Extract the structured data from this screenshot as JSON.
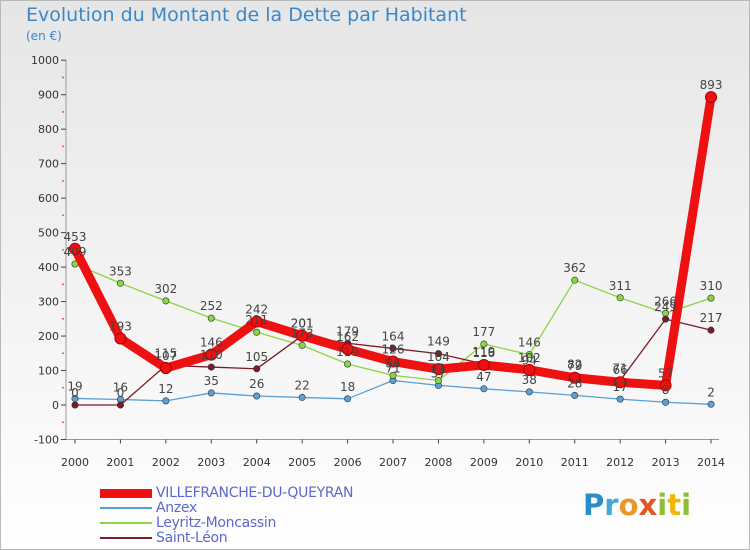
{
  "title": "Evolution du Montant de la Dette par Habitant",
  "unit_label": "(en €)",
  "logo_text": "Proxiti",
  "chart_data": {
    "type": "line",
    "title": "Evolution du Montant de la Dette par Habitant",
    "ylabel": "(en €)",
    "xlabel": "",
    "categories": [
      "2000",
      "2001",
      "2002",
      "2003",
      "2004",
      "2005",
      "2006",
      "2007",
      "2008",
      "2009",
      "2010",
      "2011",
      "2012",
      "2013",
      "2014"
    ],
    "ylim": [
      -100,
      1000
    ],
    "yticks": [
      -100,
      0,
      100,
      200,
      300,
      400,
      500,
      600,
      700,
      800,
      900,
      1000
    ],
    "grid": false,
    "legend_position": "bottom-left",
    "series": [
      {
        "name": "VILLEFRANCHE-DU-QUEYRAN",
        "color": "#ee1111",
        "values": [
          453,
          193,
          107,
          146,
          242,
          201,
          162,
          126,
          104,
          116,
          102,
          79,
          66,
          57,
          893
        ]
      },
      {
        "name": "Anzex",
        "color": "#5b9fd6",
        "values": [
          19,
          16,
          12,
          35,
          26,
          22,
          18,
          71,
          57,
          47,
          38,
          28,
          17,
          8,
          2
        ]
      },
      {
        "name": "Leyritz-Moncassin",
        "color": "#8ad642",
        "values": [
          409,
          353,
          302,
          252,
          211,
          173,
          119,
          86,
          71,
          177,
          146,
          362,
          311,
          266,
          310
        ]
      },
      {
        "name": "Saint-Léon",
        "color": "#7a1c28",
        "values": [
          0,
          0,
          115,
          110,
          105,
          201,
          179,
          164,
          149,
          119,
          94,
          82,
          71,
          249,
          217
        ]
      }
    ]
  }
}
